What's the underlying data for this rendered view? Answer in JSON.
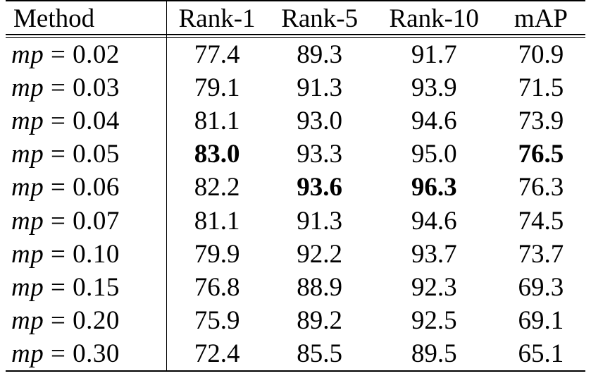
{
  "table": {
    "headers": [
      "Method",
      "Rank-1",
      "Rank-5",
      "Rank-10",
      "mAP"
    ],
    "rows": [
      {
        "method_var": "mp",
        "method_value": "0.02",
        "values": [
          "77.4",
          "89.3",
          "91.7",
          "70.9"
        ],
        "bold": [
          false,
          false,
          false,
          false
        ]
      },
      {
        "method_var": "mp",
        "method_value": "0.03",
        "values": [
          "79.1",
          "91.3",
          "93.9",
          "71.5"
        ],
        "bold": [
          false,
          false,
          false,
          false
        ]
      },
      {
        "method_var": "mp",
        "method_value": "0.04",
        "values": [
          "81.1",
          "93.0",
          "94.6",
          "73.9"
        ],
        "bold": [
          false,
          false,
          false,
          false
        ]
      },
      {
        "method_var": "mp",
        "method_value": "0.05",
        "values": [
          "83.0",
          "93.3",
          "95.0",
          "76.5"
        ],
        "bold": [
          true,
          false,
          false,
          true
        ]
      },
      {
        "method_var": "mp",
        "method_value": "0.06",
        "values": [
          "82.2",
          "93.6",
          "96.3",
          "76.3"
        ],
        "bold": [
          false,
          true,
          true,
          false
        ]
      },
      {
        "method_var": "mp",
        "method_value": "0.07",
        "values": [
          "81.1",
          "91.3",
          "94.6",
          "74.5"
        ],
        "bold": [
          false,
          false,
          false,
          false
        ]
      },
      {
        "method_var": "mp",
        "method_value": "0.10",
        "values": [
          "79.9",
          "92.2",
          "93.7",
          "73.7"
        ],
        "bold": [
          false,
          false,
          false,
          false
        ]
      },
      {
        "method_var": "mp",
        "method_value": "0.15",
        "values": [
          "76.8",
          "88.9",
          "92.3",
          "69.3"
        ],
        "bold": [
          false,
          false,
          false,
          false
        ]
      },
      {
        "method_var": "mp",
        "method_value": "0.20",
        "values": [
          "75.9",
          "89.2",
          "92.5",
          "69.1"
        ],
        "bold": [
          false,
          false,
          false,
          false
        ]
      },
      {
        "method_var": "mp",
        "method_value": "0.30",
        "values": [
          "72.4",
          "85.5",
          "89.5",
          "65.1"
        ],
        "bold": [
          false,
          false,
          false,
          false
        ]
      }
    ]
  }
}
